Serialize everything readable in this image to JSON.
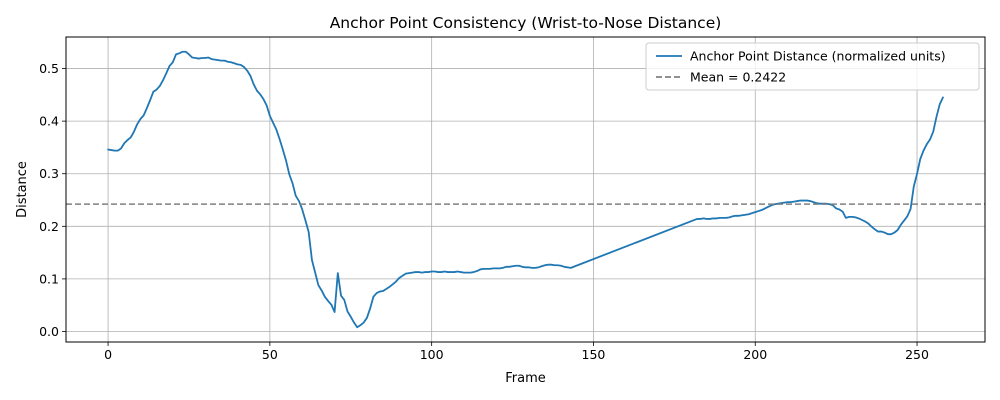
{
  "chart_data": {
    "type": "line",
    "title": "Anchor Point Consistency (Wrist-to-Nose Distance)",
    "xlabel": "Frame",
    "ylabel": "Distance",
    "xlim": [
      -13,
      271
    ],
    "ylim": [
      -0.02,
      0.56
    ],
    "xticks": [
      0,
      50,
      100,
      150,
      200,
      250
    ],
    "yticks": [
      0.0,
      0.1,
      0.2,
      0.3,
      0.4,
      0.5
    ],
    "grid": true,
    "legend_position": "upper right",
    "series": [
      {
        "name": "Anchor Point Distance (normalized units)",
        "color": "#1f77b4",
        "style": "solid",
        "x": [
          0,
          1,
          2,
          3,
          4,
          5,
          6,
          7,
          8,
          9,
          10,
          11,
          12,
          13,
          14,
          15,
          16,
          17,
          18,
          19,
          20,
          21,
          22,
          23,
          24,
          25,
          26,
          27,
          28,
          29,
          30,
          31,
          32,
          33,
          34,
          35,
          36,
          37,
          38,
          39,
          40,
          41,
          42,
          43,
          44,
          45,
          46,
          47,
          48,
          49,
          50,
          51,
          52,
          53,
          54,
          55,
          56,
          57,
          58,
          59,
          60,
          61,
          62,
          63,
          64,
          65,
          66,
          67,
          68,
          69,
          70,
          71,
          72,
          73,
          74,
          75,
          76,
          77,
          78,
          79,
          80,
          81,
          82,
          83,
          84,
          85,
          86,
          87,
          88,
          89,
          90,
          91,
          92,
          93,
          94,
          95,
          96,
          97,
          98,
          99,
          100,
          101,
          102,
          103,
          104,
          105,
          106,
          107,
          108,
          109,
          110,
          111,
          112,
          113,
          114,
          115,
          116,
          117,
          118,
          119,
          120,
          121,
          122,
          123,
          124,
          125,
          126,
          127,
          128,
          129,
          130,
          131,
          132,
          133,
          134,
          135,
          136,
          137,
          138,
          139,
          140,
          141,
          142,
          143,
          182,
          183,
          184,
          185,
          186,
          187,
          188,
          189,
          190,
          191,
          192,
          193,
          194,
          195,
          196,
          197,
          198,
          199,
          200,
          201,
          202,
          203,
          204,
          205,
          206,
          207,
          208,
          209,
          210,
          211,
          212,
          213,
          214,
          215,
          216,
          217,
          218,
          219,
          220,
          221,
          222,
          223,
          224,
          225,
          226,
          227,
          228,
          229,
          230,
          231,
          232,
          233,
          234,
          235,
          236,
          237,
          238,
          239,
          240,
          241,
          242,
          243,
          244,
          245,
          246,
          247,
          248,
          249,
          250,
          251,
          252,
          253,
          254,
          255,
          256,
          257,
          258
        ],
        "y": [
          0.346,
          0.345,
          0.344,
          0.344,
          0.348,
          0.358,
          0.364,
          0.369,
          0.38,
          0.394,
          0.404,
          0.411,
          0.425,
          0.44,
          0.456,
          0.46,
          0.467,
          0.478,
          0.491,
          0.505,
          0.512,
          0.527,
          0.529,
          0.532,
          0.532,
          0.527,
          0.521,
          0.52,
          0.519,
          0.52,
          0.52,
          0.521,
          0.518,
          0.517,
          0.516,
          0.515,
          0.515,
          0.513,
          0.512,
          0.51,
          0.508,
          0.507,
          0.503,
          0.496,
          0.486,
          0.47,
          0.458,
          0.451,
          0.442,
          0.43,
          0.41,
          0.397,
          0.384,
          0.366,
          0.346,
          0.325,
          0.299,
          0.282,
          0.258,
          0.248,
          0.232,
          0.211,
          0.189,
          0.136,
          0.112,
          0.088,
          0.078,
          0.066,
          0.058,
          0.051,
          0.037,
          0.111,
          0.068,
          0.06,
          0.038,
          0.028,
          0.017,
          0.008,
          0.012,
          0.017,
          0.026,
          0.044,
          0.066,
          0.073,
          0.076,
          0.077,
          0.081,
          0.085,
          0.09,
          0.095,
          0.102,
          0.106,
          0.11,
          0.111,
          0.112,
          0.113,
          0.113,
          0.112,
          0.113,
          0.113,
          0.114,
          0.114,
          0.113,
          0.113,
          0.114,
          0.113,
          0.113,
          0.113,
          0.114,
          0.113,
          0.112,
          0.112,
          0.112,
          0.113,
          0.115,
          0.118,
          0.119,
          0.119,
          0.119,
          0.12,
          0.12,
          0.12,
          0.121,
          0.123,
          0.123,
          0.124,
          0.125,
          0.125,
          0.123,
          0.122,
          0.122,
          0.121,
          0.121,
          0.122,
          0.124,
          0.126,
          0.127,
          0.127,
          0.126,
          0.126,
          0.125,
          0.123,
          0.122,
          0.121,
          0.214,
          0.214,
          0.215,
          0.214,
          0.214,
          0.215,
          0.215,
          0.216,
          0.216,
          0.216,
          0.217,
          0.219,
          0.22,
          0.22,
          0.221,
          0.222,
          0.223,
          0.225,
          0.227,
          0.229,
          0.231,
          0.234,
          0.237,
          0.24,
          0.242,
          0.243,
          0.244,
          0.245,
          0.246,
          0.246,
          0.247,
          0.248,
          0.249,
          0.249,
          0.249,
          0.248,
          0.246,
          0.244,
          0.243,
          0.243,
          0.243,
          0.242,
          0.24,
          0.234,
          0.232,
          0.228,
          0.216,
          0.218,
          0.218,
          0.217,
          0.215,
          0.212,
          0.209,
          0.205,
          0.199,
          0.194,
          0.19,
          0.19,
          0.188,
          0.185,
          0.185,
          0.188,
          0.193,
          0.203,
          0.211,
          0.219,
          0.233,
          0.276,
          0.3,
          0.328,
          0.344,
          0.356,
          0.365,
          0.38,
          0.408,
          0.432,
          0.445
        ]
      },
      {
        "name": "Mean = 0.2422",
        "color": "#808080",
        "style": "dashed",
        "y_constant": 0.2422
      }
    ]
  }
}
